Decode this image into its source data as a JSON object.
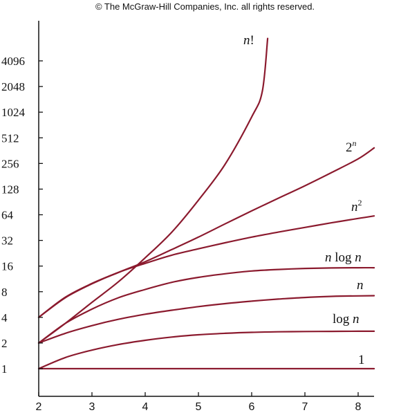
{
  "header": {
    "copyright": "© The McGraw-Hill Companies, Inc. all rights reserved."
  },
  "colors": {
    "curve": "#8b1a2e",
    "axis": "#111111"
  },
  "chart_data": {
    "type": "line",
    "title": "",
    "xlabel": "",
    "ylabel": "",
    "x_scale": "linear",
    "y_scale": "log2",
    "xlim": [
      2,
      8.3
    ],
    "ylim": [
      0.72,
      8192
    ],
    "grid": false,
    "legend": "labels at curve ends",
    "x_ticks": [
      2,
      3,
      4,
      5,
      6,
      7,
      8
    ],
    "x_tick_labels": [
      "2",
      "3",
      "4",
      "5",
      "6",
      "7",
      "8"
    ],
    "y_ticks": [
      1,
      2,
      4,
      8,
      16,
      32,
      64,
      128,
      256,
      512,
      1024,
      2048,
      4096
    ],
    "y_tick_labels": [
      "1",
      "2",
      "4",
      "8",
      "16",
      "32",
      "64",
      "128",
      "256",
      "512",
      "1024",
      "2048",
      "4096"
    ],
    "series": [
      {
        "name": "1",
        "label_parts": [
          {
            "t": "1",
            "s": ""
          }
        ],
        "x": [
          2,
          3,
          4,
          5,
          6,
          7,
          8,
          8.3
        ],
        "y": [
          1,
          1,
          1,
          1,
          1,
          1,
          1,
          1
        ]
      },
      {
        "name": "log n",
        "label_parts": [
          {
            "t": "log ",
            "s": ""
          },
          {
            "t": "n",
            "s": "it"
          }
        ],
        "x": [
          2,
          2.5,
          3,
          3.5,
          4,
          4.5,
          5,
          5.5,
          6,
          6.5,
          7,
          7.5,
          8,
          8.3
        ],
        "y": [
          1,
          1.35,
          1.65,
          1.92,
          2.15,
          2.35,
          2.5,
          2.6,
          2.67,
          2.71,
          2.73,
          2.74,
          2.75,
          2.75
        ]
      },
      {
        "name": "n",
        "label_parts": [
          {
            "t": "n",
            "s": "it"
          }
        ],
        "x": [
          2,
          2.5,
          3,
          3.5,
          4,
          4.5,
          5,
          5.5,
          6,
          6.5,
          7,
          7.5,
          8,
          8.3
        ],
        "y": [
          2,
          2.6,
          3.2,
          3.8,
          4.35,
          4.85,
          5.35,
          5.8,
          6.2,
          6.55,
          6.85,
          7.05,
          7.15,
          7.18
        ]
      },
      {
        "name": "n log n",
        "label_parts": [
          {
            "t": "n",
            "s": "it"
          },
          {
            "t": " log ",
            "s": ""
          },
          {
            "t": "n",
            "s": "it"
          }
        ],
        "x": [
          2,
          2.5,
          3,
          3.5,
          4,
          4.5,
          5,
          5.5,
          6,
          6.5,
          7,
          7.5,
          8,
          8.3
        ],
        "y": [
          2,
          3.4,
          5,
          6.8,
          8.5,
          10.3,
          11.8,
          13,
          14,
          14.6,
          15,
          15.2,
          15.3,
          15.3
        ]
      },
      {
        "name": "n²",
        "label_parts": [
          {
            "t": "n",
            "s": "it"
          },
          {
            "t": "2",
            "s": "sup"
          }
        ],
        "x": [
          2,
          2.5,
          3,
          3.5,
          4,
          4.5,
          5,
          5.5,
          6,
          6.5,
          7,
          7.5,
          8,
          8.3
        ],
        "y": [
          4,
          6.8,
          9.9,
          13.5,
          17.2,
          21.5,
          25.5,
          30,
          35,
          40,
          45.5,
          51.5,
          58,
          62
        ]
      },
      {
        "name": "2ⁿ",
        "label_parts": [
          {
            "t": "2",
            "s": ""
          },
          {
            "t": "n",
            "s": "supit"
          }
        ],
        "x": [
          2,
          2.5,
          3,
          3.5,
          4,
          4.5,
          5,
          5.5,
          6,
          6.5,
          7,
          7.5,
          8,
          8.3
        ],
        "y": [
          4,
          6.9,
          10,
          13.5,
          18,
          25,
          35,
          50,
          71,
          100,
          140,
          200,
          290,
          390
        ]
      },
      {
        "name": "n!",
        "label_parts": [
          {
            "t": "n",
            "s": "it"
          },
          {
            "t": "!",
            "s": ""
          }
        ],
        "x": [
          2,
          2.5,
          3,
          3.5,
          4,
          4.5,
          5,
          5.5,
          6,
          6.2,
          6.3
        ],
        "y": [
          2,
          3.4,
          6,
          10.5,
          20,
          40,
          95,
          250,
          900,
          1800,
          7500
        ]
      }
    ]
  }
}
